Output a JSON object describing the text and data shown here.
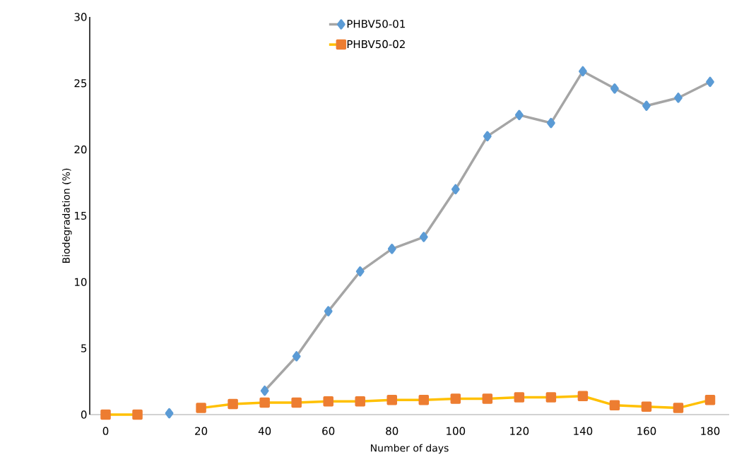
{
  "chart_data": {
    "type": "line",
    "xlabel": "Number of days",
    "ylabel": "Biodegradation (%)",
    "categories": [
      "0",
      null,
      null,
      "20",
      null,
      "40",
      null,
      "60",
      null,
      "80",
      null,
      "100",
      null,
      "120",
      null,
      "140",
      null,
      "160",
      null,
      "180"
    ],
    "series": [
      {
        "name": "PHBV50-01",
        "color": "#a5a5a5",
        "colors": [
          "#5b9bd5",
          "#5b9bd5",
          "#5b9bd5",
          "#5b9bd5",
          "#5b9bd5",
          "#5b9bd5",
          "#5b9bd5",
          "#5b9bd5",
          "#5b9bd5",
          "#5b9bd5",
          "#5b9bd5",
          "#5b9bd5",
          "#5b9bd5",
          "#5b9bd5",
          "#5b9bd5",
          "#5b9bd5",
          "#5b9bd5",
          "#5b9bd5",
          "#5b9bd5",
          "#5b9bd5"
        ],
        "marker": "diamond",
        "values": [
          null,
          null,
          0.1,
          null,
          null,
          1.8,
          4.4,
          7.8,
          10.8,
          12.5,
          13.4,
          17.0,
          21.0,
          22.6,
          22.0,
          25.9,
          24.6,
          23.3,
          23.9,
          25.1
        ]
      },
      {
        "name": "PHBV50-02",
        "color": "#ffc000",
        "colors": [
          "#ed7d31",
          "#ed7d31",
          "#ed7d31",
          "#ed7d31",
          "#ed7d31",
          "#ed7d31",
          "#ed7d31",
          "#ed7d31",
          "#ed7d31",
          "#ed7d31",
          "#ed7d31",
          "#ed7d31",
          "#ed7d31",
          "#ed7d31",
          "#ed7d31",
          "#ed7d31",
          "#ed7d31",
          "#ed7d31",
          "#ed7d31",
          "#ed7d31"
        ],
        "marker": "square",
        "values": [
          0,
          0,
          null,
          0.5,
          0.8,
          0.9,
          0.9,
          1.0,
          1.0,
          1.1,
          1.1,
          1.2,
          1.2,
          1.3,
          1.3,
          1.4,
          0.7,
          0.6,
          0.5,
          1.1
        ]
      }
    ],
    "ylim": [
      0,
      30
    ],
    "yticks": [
      0,
      5,
      10,
      15,
      20,
      25,
      30
    ],
    "legend": "top",
    "grid": false,
    "line_style": "solid"
  }
}
